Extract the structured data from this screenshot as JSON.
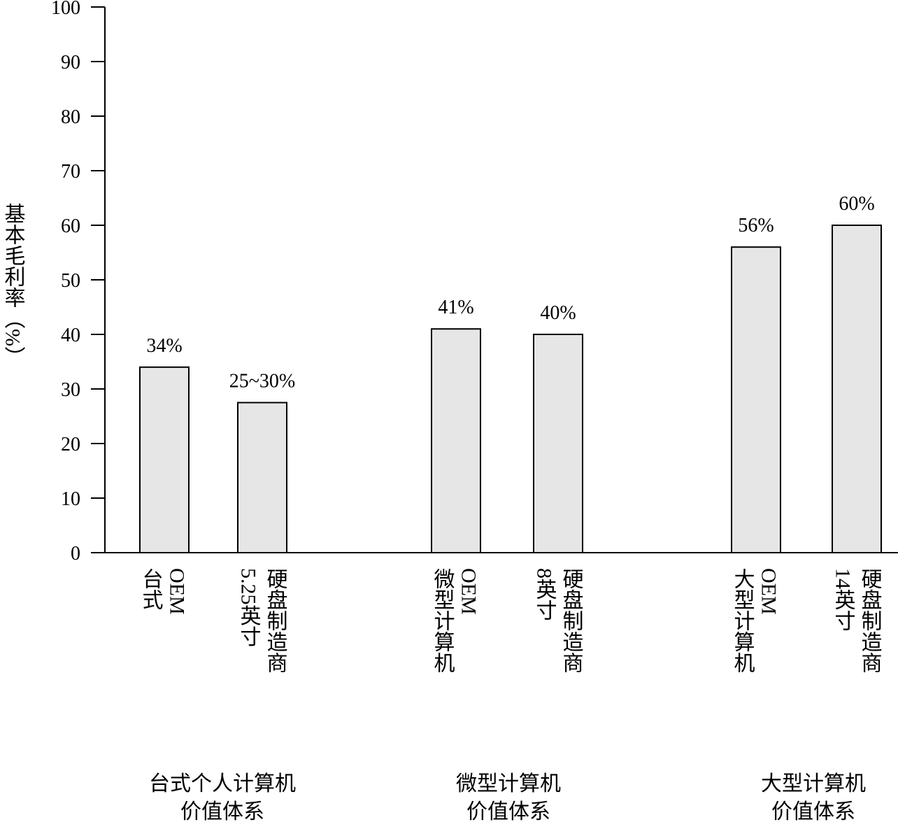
{
  "chart_data": {
    "type": "bar",
    "y_label": "基本毛利率（%）",
    "categories": [
      [
        "台式",
        "OEM"
      ],
      [
        "5.25英寸",
        "硬盘制造商"
      ],
      [
        "微型计算机",
        "OEM"
      ],
      [
        "8英寸",
        "硬盘制造商"
      ],
      [
        "大型计算机",
        "OEM"
      ],
      [
        "14英寸",
        "硬盘制造商"
      ]
    ],
    "values": [
      34,
      27.5,
      41,
      40,
      56,
      60
    ],
    "value_labels": [
      "34%",
      "25~30%",
      "41%",
      "40%",
      "56%",
      "60%"
    ],
    "groups": [
      [
        "台式个人计算机",
        "价值体系"
      ],
      [
        "微型计算机",
        "价值体系"
      ],
      [
        "大型计算机",
        "价值体系"
      ]
    ],
    "color": "#e6e6e6",
    "ylim": [
      0,
      100
    ],
    "yticks": [
      0,
      10,
      20,
      30,
      40,
      50,
      60,
      70,
      80,
      90,
      100
    ],
    "grid": false
  }
}
